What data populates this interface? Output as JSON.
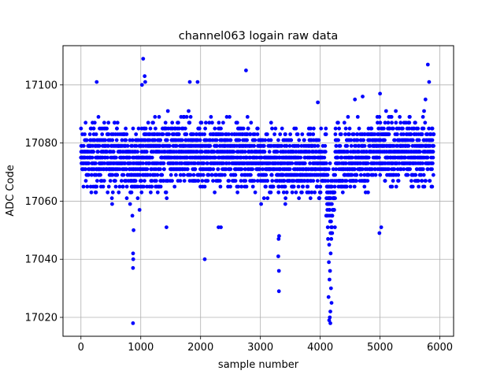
{
  "chart_data": {
    "type": "scatter",
    "title": "channel063 logain raw data",
    "xlabel": "sample number",
    "ylabel": "ADC Code",
    "xlim": [
      -300,
      6230
    ],
    "ylim": [
      17013.5,
      17113.5
    ],
    "xticks": [
      0,
      1000,
      2000,
      3000,
      4000,
      5000,
      6000
    ],
    "yticks": [
      17020,
      17040,
      17060,
      17080,
      17100
    ],
    "grid": true,
    "marker_color": "#0000ff",
    "n_samples": 5900,
    "bands": [
      {
        "x": [
          0,
          800
        ],
        "y": [
          17059,
          17091
        ]
      },
      {
        "x": [
          800,
          1000
        ],
        "y": [
          17055,
          17089
        ]
      },
      {
        "x": [
          1000,
          2200
        ],
        "y": [
          17059,
          17093
        ]
      },
      {
        "x": [
          2200,
          3000
        ],
        "y": [
          17061,
          17091
        ]
      },
      {
        "x": [
          3000,
          3500
        ],
        "y": [
          17057,
          17089
        ]
      },
      {
        "x": [
          3500,
          4100
        ],
        "y": [
          17057,
          17089
        ]
      },
      {
        "x": [
          4100,
          4250
        ],
        "y": [
          17045,
          17077
        ]
      },
      {
        "x": [
          4250,
          4800
        ],
        "y": [
          17059,
          17091
        ]
      },
      {
        "x": [
          4800,
          5900
        ],
        "y": [
          17061,
          17093
        ]
      }
    ],
    "outliers": [
      {
        "x": 264,
        "y": 17101
      },
      {
        "x": 870,
        "y": 17018
      },
      {
        "x": 870,
        "y": 17037
      },
      {
        "x": 872,
        "y": 17042
      },
      {
        "x": 875,
        "y": 17040
      },
      {
        "x": 880,
        "y": 17050
      },
      {
        "x": 860,
        "y": 17055
      },
      {
        "x": 1040,
        "y": 17109
      },
      {
        "x": 1065,
        "y": 17103
      },
      {
        "x": 1075,
        "y": 17101
      },
      {
        "x": 1020,
        "y": 17100
      },
      {
        "x": 1430,
        "y": 17051
      },
      {
        "x": 1820,
        "y": 17101
      },
      {
        "x": 1950,
        "y": 17101
      },
      {
        "x": 2070,
        "y": 17040
      },
      {
        "x": 2760,
        "y": 17105
      },
      {
        "x": 3310,
        "y": 17029
      },
      {
        "x": 3310,
        "y": 17036
      },
      {
        "x": 3300,
        "y": 17041
      },
      {
        "x": 3305,
        "y": 17047
      },
      {
        "x": 3312,
        "y": 17048
      },
      {
        "x": 2300,
        "y": 17051
      },
      {
        "x": 2340,
        "y": 17051
      },
      {
        "x": 3960,
        "y": 17094
      },
      {
        "x": 4170,
        "y": 17018
      },
      {
        "x": 4150,
        "y": 17019
      },
      {
        "x": 4160,
        "y": 17020
      },
      {
        "x": 4170,
        "y": 17022
      },
      {
        "x": 4190,
        "y": 17025
      },
      {
        "x": 4140,
        "y": 17027
      },
      {
        "x": 4180,
        "y": 17030
      },
      {
        "x": 4155,
        "y": 17033
      },
      {
        "x": 4165,
        "y": 17036
      },
      {
        "x": 4145,
        "y": 17039
      },
      {
        "x": 4175,
        "y": 17042
      },
      {
        "x": 4150,
        "y": 17045
      },
      {
        "x": 4185,
        "y": 17047
      },
      {
        "x": 4200,
        "y": 17049
      },
      {
        "x": 4130,
        "y": 17047
      },
      {
        "x": 4710,
        "y": 17096
      },
      {
        "x": 5000,
        "y": 17097
      },
      {
        "x": 4990,
        "y": 17049
      },
      {
        "x": 5020,
        "y": 17051
      },
      {
        "x": 5800,
        "y": 17107
      },
      {
        "x": 5820,
        "y": 17101
      },
      {
        "x": 4580,
        "y": 17095
      },
      {
        "x": 5760,
        "y": 17095
      }
    ]
  }
}
